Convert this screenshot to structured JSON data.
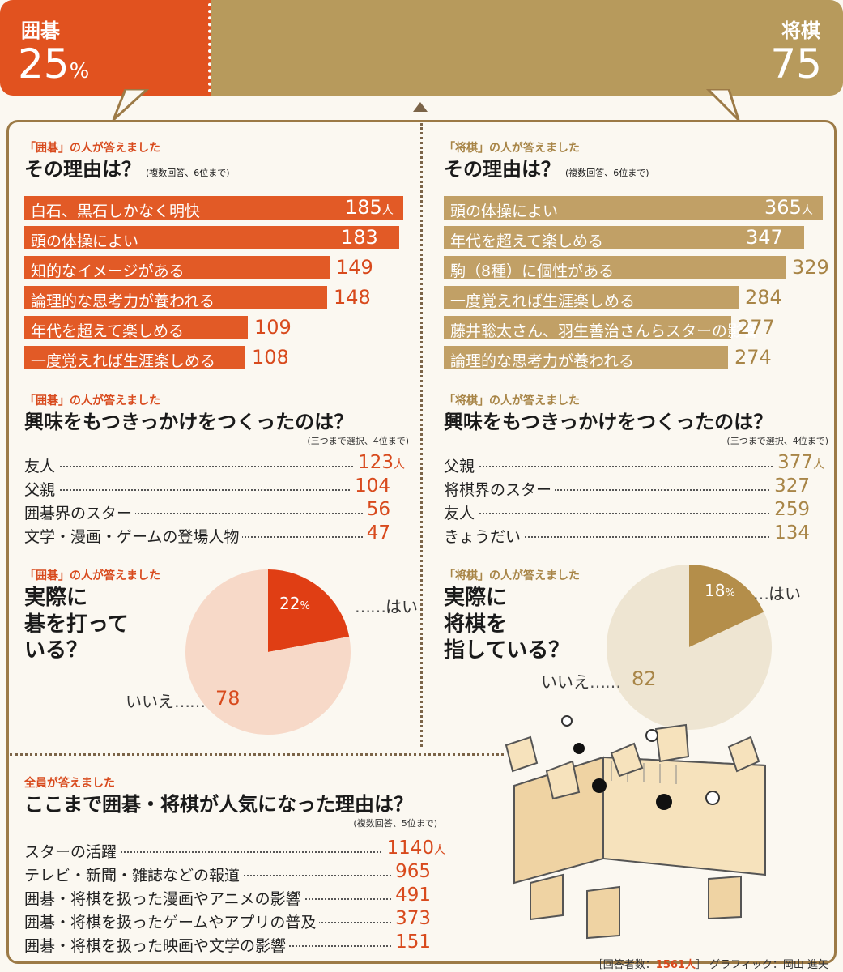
{
  "header": {
    "go": {
      "label": "囲碁",
      "value": "25",
      "unit": "%"
    },
    "shogi": {
      "label": "将棋",
      "value": "75"
    }
  },
  "go_reasons": {
    "sub": "「囲碁」の人が答えました",
    "question": "その理由は？",
    "note": "(複数回答、6位まで)"
  },
  "shogi_reasons": {
    "sub": "「将棋」の人が答えました",
    "question": "その理由は？",
    "note": "(複数回答、6位まで)"
  },
  "go_trigger": {
    "sub": "「囲碁」の人が答えました",
    "question": "興味をもつきっかけをつくったのは？",
    "note": "(三つまで選択、4位まで)"
  },
  "shogi_trigger": {
    "sub": "「将棋」の人が答えました",
    "question": "興味をもつきっかけをつくったのは？",
    "note": "(三つまで選択、4位まで)"
  },
  "go_playing": {
    "sub": "「囲碁」の人が答えました",
    "q1": "実際に",
    "q2": "碁を打って",
    "q3": "いる？",
    "yes_label": "はい",
    "no_label": "いいえ",
    "yes_pct_unit": "%"
  },
  "shogi_playing": {
    "sub": "「将棋」の人が答えました",
    "q1": "実際に",
    "q2": "将棋を",
    "q3": "指している？",
    "yes_label": "はい",
    "no_label": "いいえ",
    "yes_pct_unit": "%"
  },
  "all_reasons": {
    "sub": "全員が答えました",
    "question": "ここまで囲碁・将棋が人気になった理由は？",
    "note": "(複数回答、5位まで)"
  },
  "unit": "人",
  "footer": {
    "prefix": "［回答者数：",
    "count": "1561人",
    "suffix": "］ グラフィック：岡山 進矢"
  },
  "colors": {
    "go": "#e25a26",
    "shogi": "#c1a066",
    "frame": "#9c7a46"
  },
  "chart_data": [
    {
      "type": "bar",
      "title": "その理由は？",
      "categories": [
        "白石、黒石しかなく明快",
        "頭の体操によい",
        "知的なイメージがある",
        "論理的な思考力が養われる",
        "年代を超えて楽しめる",
        "一度覚えれば生涯楽しめる"
      ],
      "values": [
        185,
        183,
        149,
        148,
        109,
        108
      ]
    },
    {
      "type": "bar",
      "title": "その理由は？",
      "categories": [
        "頭の体操によい",
        "年代を超えて楽しめる",
        "駒（8種）に個性がある",
        "一度覚えれば生涯楽しめる",
        "藤井聡太さん、羽生善治さんらスターの影響",
        "論理的な思考力が養われる"
      ],
      "values": [
        365,
        347,
        329,
        284,
        277,
        274
      ]
    },
    {
      "type": "table",
      "title": "興味をもつきっかけをつくったのは？",
      "categories": [
        "友人",
        "父親",
        "囲碁界のスター",
        "文学・漫画・ゲームの登場人物"
      ],
      "values": [
        123,
        104,
        56,
        47
      ]
    },
    {
      "type": "table",
      "title": "興味をもつきっかけをつくったのは？",
      "categories": [
        "父親",
        "将棋界のスター",
        "友人",
        "きょうだい"
      ],
      "values": [
        377,
        327,
        259,
        134
      ]
    },
    {
      "type": "pie",
      "categories": [
        "はい",
        "いいえ"
      ],
      "values": [
        22,
        78
      ]
    },
    {
      "type": "pie",
      "categories": [
        "はい",
        "いいえ"
      ],
      "values": [
        18,
        82
      ]
    },
    {
      "type": "table",
      "title": "ここまで囲碁・将棋が人気になった理由は？",
      "categories": [
        "スターの活躍",
        "テレビ・新聞・雑誌などの報道",
        "囲碁・将棋を扱った漫画やアニメの影響",
        "囲碁・将棋を扱ったゲームやアプリの普及",
        "囲碁・将棋を扱った映画や文学の影響"
      ],
      "values": [
        1140,
        965,
        491,
        373,
        151
      ]
    }
  ]
}
